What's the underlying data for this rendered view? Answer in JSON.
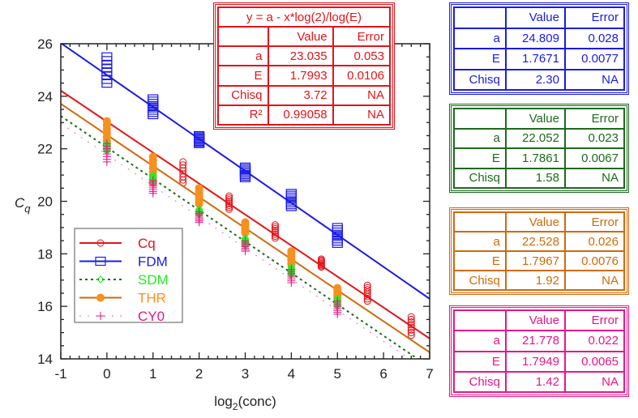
{
  "chart_data": {
    "type": "scatter",
    "xlabel": "log2(conc)",
    "ylabel": "Cq",
    "xlim": [
      -1,
      7
    ],
    "ylim": [
      14,
      26
    ],
    "xticks": [
      "-1",
      "0",
      "1",
      "2",
      "3",
      "4",
      "5",
      "6",
      "7"
    ],
    "yticks": [
      "14",
      "16",
      "18",
      "20",
      "22",
      "24",
      "26"
    ],
    "legend_position": "lower-left",
    "series": [
      {
        "name": "Cq",
        "color": "#e3141b",
        "marker": "circle",
        "line": "solid",
        "a": 23.035,
        "E": 1.7993,
        "clusters": [
          [
            1.65,
            20.7,
            21.5
          ],
          [
            2.65,
            19.7,
            20.2
          ],
          [
            3.65,
            18.6,
            19.1
          ],
          [
            4.65,
            17.5,
            17.8
          ],
          [
            5.65,
            16.2,
            16.8
          ],
          [
            6.6,
            14.9,
            15.6
          ]
        ]
      },
      {
        "name": "FDM",
        "color": "#1b1be6",
        "marker": "square",
        "line": "solid",
        "a": 24.809,
        "E": 1.7671,
        "clusters": [
          [
            0,
            24.5,
            25.5
          ],
          [
            1,
            23.3,
            23.9
          ],
          [
            2,
            22.2,
            22.5
          ],
          [
            3,
            20.9,
            21.3
          ],
          [
            4,
            19.8,
            20.3
          ],
          [
            5,
            18.4,
            19.0
          ]
        ]
      },
      {
        "name": "SDM",
        "color": "#22ee22",
        "linecolor": "#1d6b1d",
        "marker": "diamond",
        "line": "dotted",
        "a": 22.052,
        "E": 1.7861,
        "clusters": [
          [
            0,
            21.9,
            22.2
          ],
          [
            1,
            20.7,
            21.0
          ],
          [
            2,
            19.5,
            19.7
          ],
          [
            3,
            18.3,
            18.6
          ],
          [
            4,
            17.2,
            17.5
          ],
          [
            5,
            16.0,
            16.3
          ]
        ]
      },
      {
        "name": "THR",
        "color": "#f7901e",
        "linecolor": "#d06a0c",
        "marker": "filled-circle",
        "line": "solid",
        "a": 22.528,
        "E": 1.7967,
        "clusters": [
          [
            0,
            22.0,
            23.05
          ],
          [
            1,
            20.7,
            21.7
          ],
          [
            2,
            19.9,
            20.5
          ],
          [
            3,
            18.8,
            19.2
          ],
          [
            4,
            17.6,
            18.1
          ],
          [
            5,
            16.3,
            16.7
          ]
        ]
      },
      {
        "name": "CY0",
        "color": "#e8168a",
        "linecolor": "#f080c0",
        "marker": "plus",
        "line": "dash-dot",
        "a": 21.778,
        "E": 1.7949,
        "clusters": [
          [
            0,
            21.5,
            22.2
          ],
          [
            1,
            20.3,
            20.8
          ],
          [
            2,
            19.2,
            19.6
          ],
          [
            3,
            18.1,
            18.5
          ],
          [
            4,
            16.9,
            17.4
          ],
          [
            5,
            15.7,
            16.2
          ]
        ]
      }
    ]
  },
  "tables": [
    {
      "color": "#e3141b",
      "title": "y = a - x*log(2)/log(E)",
      "header": [
        "",
        "Value",
        "Error"
      ],
      "rows": [
        [
          "a",
          "23.035",
          "0.053"
        ],
        [
          "E",
          "1.7993",
          "0.0106"
        ],
        [
          "Chisq",
          "3.72",
          "NA"
        ],
        [
          "R²",
          "0.99058",
          "NA"
        ]
      ]
    },
    {
      "color": "#1b1be6",
      "header": [
        "",
        "Value",
        "Error"
      ],
      "rows": [
        [
          "a",
          "24.809",
          "0.028"
        ],
        [
          "E",
          "1.7671",
          "0.0077"
        ],
        [
          "Chisq",
          "2.30",
          "NA"
        ]
      ]
    },
    {
      "color": "#1d6b1d",
      "header": [
        "",
        "Value",
        "Error"
      ],
      "rows": [
        [
          "a",
          "22.052",
          "0.023"
        ],
        [
          "E",
          "1.7861",
          "0.0067"
        ],
        [
          "Chisq",
          "1.58",
          "NA"
        ]
      ]
    },
    {
      "color": "#d06a0c",
      "header": [
        "",
        "Value",
        "Error"
      ],
      "rows": [
        [
          "a",
          "22.528",
          "0.026"
        ],
        [
          "E",
          "1.7967",
          "0.0076"
        ],
        [
          "Chisq",
          "1.92",
          "NA"
        ]
      ]
    },
    {
      "color": "#e8168a",
      "header": [
        "",
        "Value",
        "Error"
      ],
      "rows": [
        [
          "a",
          "21.778",
          "0.022"
        ],
        [
          "E",
          "1.7949",
          "0.0065"
        ],
        [
          "Chisq",
          "1.42",
          "NA"
        ]
      ]
    }
  ]
}
